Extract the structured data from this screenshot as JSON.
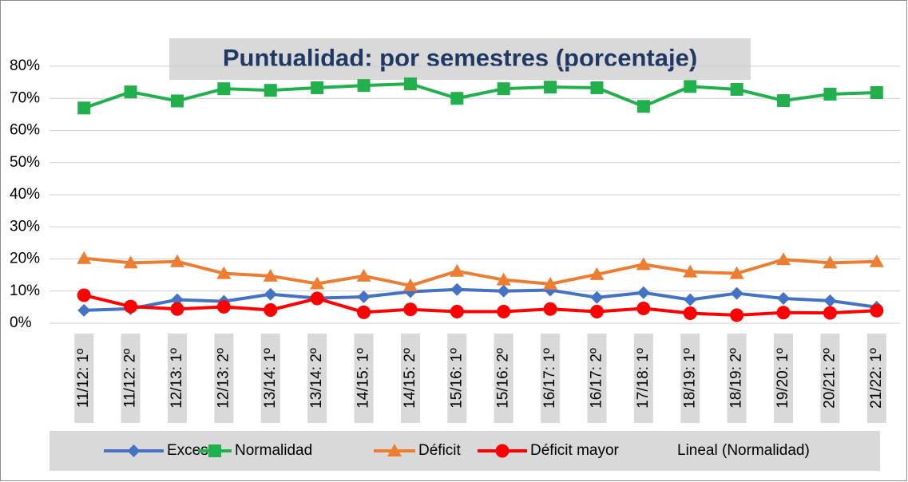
{
  "chart_data": {
    "type": "line",
    "title": "Puntualidad: por semestres (porcentaje)",
    "categories": [
      "11/12: 1º",
      "11/12: 2º",
      "12/13: 1º",
      "12/13: 2º",
      "13/14: 1º",
      "13/14: 2º",
      "14/15: 1º",
      "14/15: 2º",
      "15/16: 1º",
      "15/16: 2º",
      "16/17: 1º",
      "16/17: 2º",
      "17/18: 1º",
      "18/19: 1º",
      "18/19: 2º",
      "19/20: 1º",
      "20/21: 2º",
      "21/22: 1º"
    ],
    "series": [
      {
        "name": "Exceso",
        "color": "#4472c4",
        "marker": "diamond",
        "values": [
          4,
          4.5,
          7.3,
          6.8,
          9,
          7.8,
          8.2,
          9.8,
          10.5,
          10,
          10.3,
          8,
          9.5,
          7.3,
          9.3,
          7.7,
          7,
          5
        ]
      },
      {
        "name": "Normalidad",
        "color": "#21b04b",
        "marker": "square",
        "values": [
          67,
          72,
          69.2,
          73,
          72.5,
          73.3,
          74,
          74.5,
          70,
          73,
          73.5,
          73.3,
          67.5,
          73.7,
          72.8,
          69.3,
          71.3,
          71.8
        ]
      },
      {
        "name": "Déficit",
        "color": "#ed7d31",
        "marker": "triangle",
        "values": [
          20.2,
          18.8,
          19.2,
          15.5,
          14.7,
          12.3,
          14.7,
          11.7,
          16.2,
          13.5,
          12.2,
          15.2,
          18.3,
          16,
          15.5,
          19.8,
          18.8,
          19.2
        ]
      },
      {
        "name": "Déficit mayor",
        "color": "#ff0000",
        "marker": "circle",
        "values": [
          8.7,
          5.2,
          4.4,
          5.1,
          4.1,
          7.7,
          3.4,
          4.3,
          3.6,
          3.6,
          4.4,
          3.6,
          4.6,
          3.1,
          2.5,
          3.3,
          3.2,
          3.9
        ]
      }
    ],
    "trendline_legend": "Lineal (Normalidad)",
    "ylim": [
      0,
      80
    ],
    "yticks": [
      {
        "value": 0,
        "label": "0%"
      },
      {
        "value": 10,
        "label": "10%"
      },
      {
        "value": 20,
        "label": "20%"
      },
      {
        "value": 30,
        "label": "30%"
      },
      {
        "value": 40,
        "label": "40%"
      },
      {
        "value": 50,
        "label": "50%"
      },
      {
        "value": 60,
        "label": "60%"
      },
      {
        "value": 70,
        "label": "70%"
      },
      {
        "value": 80,
        "label": "80%"
      }
    ],
    "grid": true
  }
}
